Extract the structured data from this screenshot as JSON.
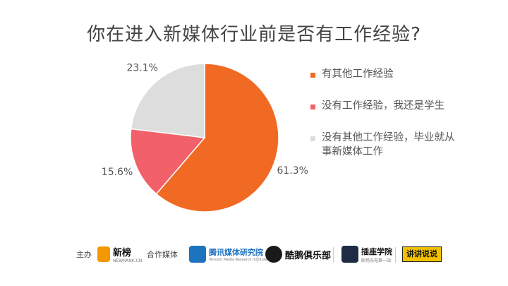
{
  "chart_data": {
    "type": "pie",
    "title": "你在进入新媒体行业前是否有工作经验?",
    "slices": [
      {
        "label": "有其他工作经验",
        "value": 61.3,
        "display": "61.3%",
        "color": "#f06a23"
      },
      {
        "label": "没有工作经验，我还是学生",
        "value": 15.6,
        "display": "15.6%",
        "color": "#f2606a"
      },
      {
        "label": "没有其他工作经验，毕业就从事新媒体工作",
        "value": 23.1,
        "display": "23.1%",
        "color": "#dddddd"
      }
    ],
    "legend_position": "right"
  },
  "footer": {
    "host_label": "主办",
    "host_logo": "新榜",
    "host_logo_sub": "NEWRANK.CN",
    "partner_label": "合作媒体",
    "partners": [
      {
        "name": "腾讯媒体研究院",
        "sub": "Tencent Media Research Institute",
        "icon": "tencent-media-logo-icon"
      },
      {
        "name": "酷鹅俱乐部",
        "icon": "penguin-club-logo-icon"
      },
      {
        "name": "插座学院",
        "sub": "职场充电第一站",
        "icon": "socket-academy-logo-icon"
      },
      {
        "name": "讲讲说说",
        "icon": "badge-logo-icon"
      }
    ]
  }
}
